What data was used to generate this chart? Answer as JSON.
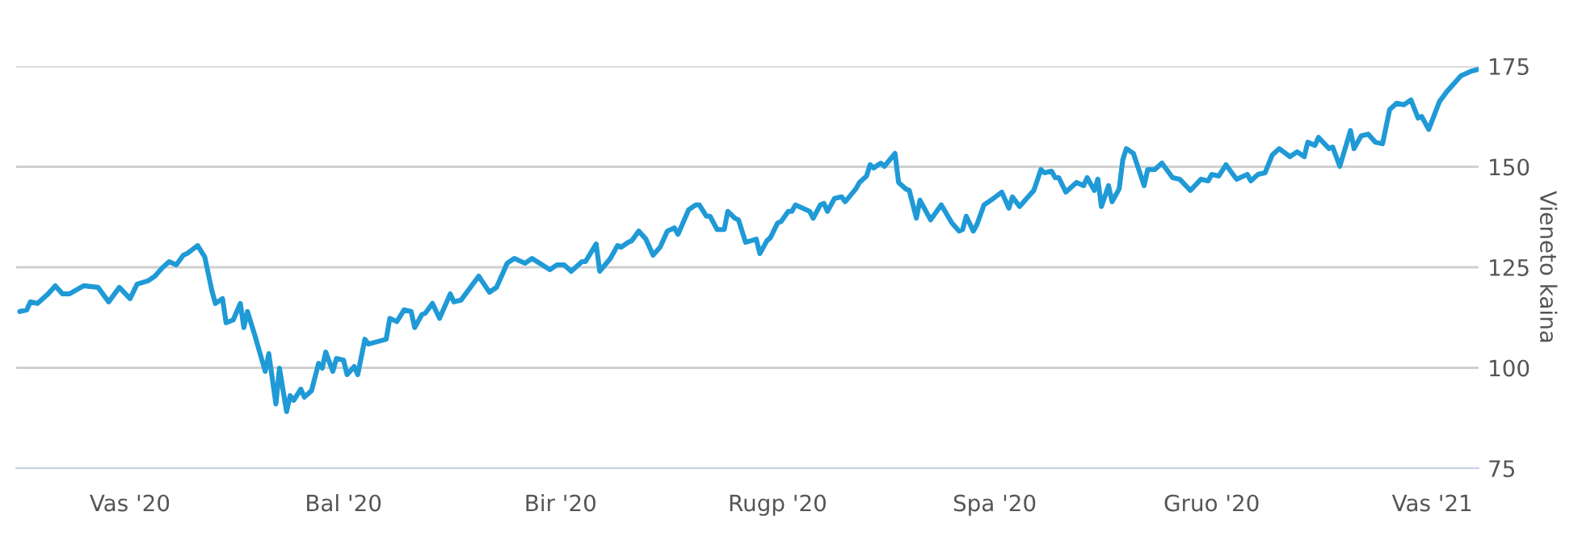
{
  "chart_data": {
    "type": "line",
    "ylabel": "Vieneto kaina",
    "xlim": [
      "2019-12-31",
      "2021-02-14"
    ],
    "xticks": [
      {
        "value": "2020-02-01",
        "label": "Vas '20"
      },
      {
        "value": "2020-04-01",
        "label": "Bal '20"
      },
      {
        "value": "2020-06-01",
        "label": "Bir '20"
      },
      {
        "value": "2020-08-01",
        "label": "Rugp '20"
      },
      {
        "value": "2020-10-01",
        "label": "Spa '20"
      },
      {
        "value": "2020-12-01",
        "label": "Gruo '20"
      },
      {
        "value": "2021-02-01",
        "label": "Vas '21"
      }
    ],
    "ylim": [
      75,
      175
    ],
    "yticks": [
      75,
      100,
      125,
      150,
      175
    ],
    "grid": "y",
    "marker": "none",
    "line_style": "solid",
    "x": [
      "2020-01-01",
      "2020-01-03",
      "2020-01-04",
      "2020-01-06",
      "2020-01-09",
      "2020-01-11",
      "2020-01-13",
      "2020-01-15",
      "2020-01-19",
      "2020-01-23",
      "2020-01-26",
      "2020-01-29",
      "2020-02-01",
      "2020-02-03",
      "2020-02-06",
      "2020-02-08",
      "2020-02-10",
      "2020-02-12",
      "2020-02-14",
      "2020-02-16",
      "2020-02-17",
      "2020-02-20",
      "2020-02-22",
      "2020-02-24",
      "2020-02-25",
      "2020-02-27",
      "2020-02-28",
      "2020-03-01",
      "2020-03-03",
      "2020-03-04",
      "2020-03-05",
      "2020-03-07",
      "2020-03-10",
      "2020-03-11",
      "2020-03-13",
      "2020-03-14",
      "2020-03-16",
      "2020-03-17",
      "2020-03-18",
      "2020-03-20",
      "2020-03-21",
      "2020-03-23",
      "2020-03-25",
      "2020-03-26",
      "2020-03-27",
      "2020-03-29",
      "2020-03-30",
      "2020-04-01",
      "2020-04-02",
      "2020-04-04",
      "2020-04-05",
      "2020-04-07",
      "2020-04-08",
      "2020-04-13",
      "2020-04-14",
      "2020-04-16",
      "2020-04-18",
      "2020-04-20",
      "2020-04-21",
      "2020-04-23",
      "2020-04-24",
      "2020-04-26",
      "2020-04-28",
      "2020-05-01",
      "2020-05-02",
      "2020-05-04",
      "2020-05-09",
      "2020-05-12",
      "2020-05-14",
      "2020-05-17",
      "2020-05-19",
      "2020-05-22",
      "2020-05-24",
      "2020-05-29",
      "2020-05-31",
      "2020-06-02",
      "2020-06-04",
      "2020-06-07",
      "2020-06-08",
      "2020-06-11",
      "2020-06-12",
      "2020-06-15",
      "2020-06-17",
      "2020-06-18",
      "2020-06-20",
      "2020-06-21",
      "2020-06-23",
      "2020-06-25",
      "2020-06-27",
      "2020-06-29",
      "2020-07-01",
      "2020-07-03",
      "2020-07-04",
      "2020-07-07",
      "2020-07-09",
      "2020-07-10",
      "2020-07-12",
      "2020-07-13",
      "2020-07-15",
      "2020-07-17",
      "2020-07-18",
      "2020-07-20",
      "2020-07-21",
      "2020-07-23",
      "2020-07-26",
      "2020-07-27",
      "2020-07-29",
      "2020-07-30",
      "2020-08-01",
      "2020-08-02",
      "2020-08-04",
      "2020-08-05",
      "2020-08-06",
      "2020-08-09",
      "2020-08-10",
      "2020-08-11",
      "2020-08-13",
      "2020-08-14",
      "2020-08-15",
      "2020-08-17",
      "2020-08-19",
      "2020-08-20",
      "2020-08-23",
      "2020-08-24",
      "2020-08-26",
      "2020-08-27",
      "2020-08-28",
      "2020-08-30",
      "2020-08-31",
      "2020-09-03",
      "2020-09-04",
      "2020-09-06",
      "2020-09-07",
      "2020-09-09",
      "2020-09-10",
      "2020-09-13",
      "2020-09-16",
      "2020-09-19",
      "2020-09-21",
      "2020-09-22",
      "2020-09-23",
      "2020-09-25",
      "2020-09-26",
      "2020-09-28",
      "2020-09-30",
      "2020-10-03",
      "2020-10-05",
      "2020-10-06",
      "2020-10-08",
      "2020-10-10",
      "2020-10-12",
      "2020-10-14",
      "2020-10-15",
      "2020-10-17",
      "2020-10-18",
      "2020-10-19",
      "2020-10-21",
      "2020-10-24",
      "2020-10-26",
      "2020-10-27",
      "2020-10-29",
      "2020-10-30",
      "2020-10-31",
      "2020-11-02",
      "2020-11-03",
      "2020-11-05",
      "2020-11-06",
      "2020-11-07",
      "2020-11-09",
      "2020-11-12",
      "2020-11-13",
      "2020-11-15",
      "2020-11-17",
      "2020-11-20",
      "2020-11-22",
      "2020-11-25",
      "2020-11-28",
      "2020-11-30",
      "2020-12-01",
      "2020-12-03",
      "2020-12-05",
      "2020-12-08",
      "2020-12-11",
      "2020-12-12",
      "2020-12-14",
      "2020-12-16",
      "2020-12-18",
      "2020-12-20",
      "2020-12-23",
      "2020-12-25",
      "2020-12-27",
      "2020-12-28",
      "2020-12-30",
      "2020-12-31",
      "2021-01-03",
      "2021-01-04",
      "2021-01-06",
      "2021-01-09",
      "2021-01-10",
      "2021-01-12",
      "2021-01-14",
      "2021-01-16",
      "2021-01-18",
      "2021-01-20",
      "2021-01-22",
      "2021-01-24",
      "2021-01-26",
      "2021-01-28",
      "2021-01-29",
      "2021-01-31",
      "2021-02-03",
      "2021-02-05",
      "2021-02-09",
      "2021-02-12",
      "2021-02-14"
    ],
    "series": [
      {
        "color": "#1f9ad6",
        "values": [
          114,
          114.4,
          116.4,
          116,
          118.4,
          120.4,
          118.4,
          118.4,
          120.4,
          120,
          116.4,
          120,
          117.2,
          120.8,
          121.6,
          122.8,
          124.8,
          126.4,
          125.6,
          128,
          128.4,
          130.4,
          127.6,
          119.2,
          116,
          117.2,
          111.2,
          111.9,
          116,
          110,
          114,
          108.3,
          99.1,
          103.5,
          91,
          99.9,
          89.1,
          93.1,
          91.9,
          94.7,
          92.7,
          94.3,
          101.1,
          99.9,
          103.9,
          99.1,
          102.3,
          101.9,
          98.3,
          100.3,
          98.3,
          107.1,
          105.9,
          107.1,
          112.3,
          111.5,
          114.4,
          114,
          110,
          113.2,
          113.6,
          116,
          112.3,
          118.4,
          116.4,
          116.8,
          122.8,
          118.8,
          120,
          126,
          127.2,
          126,
          127.2,
          124.4,
          125.6,
          125.6,
          124,
          126.4,
          126.4,
          130.8,
          124,
          127.2,
          130.4,
          130,
          131.2,
          131.6,
          134,
          132,
          128,
          130,
          134,
          134.8,
          133.2,
          139.3,
          140.5,
          140.5,
          137.7,
          137.7,
          134.4,
          134.4,
          138.9,
          137.2,
          136.8,
          131.2,
          132,
          128.4,
          131.6,
          132.4,
          136,
          136.4,
          138.9,
          138.9,
          140.5,
          139.3,
          138.9,
          137.2,
          140.5,
          140.9,
          138.9,
          142.1,
          142.5,
          141.3,
          144.5,
          146.1,
          147.7,
          150.5,
          149.7,
          150.9,
          150.1,
          153.3,
          146.1,
          144.5,
          144.1,
          137.2,
          141.7,
          136.8,
          140.5,
          136,
          134,
          134.4,
          137.7,
          134,
          135.6,
          140.5,
          141.7,
          143.7,
          139.7,
          142.5,
          140.1,
          142.1,
          144.1,
          149.3,
          148.5,
          148.9,
          147.3,
          147.3,
          143.7,
          146.1,
          145.3,
          147.3,
          144.1,
          146.9,
          140.1,
          145.3,
          141.3,
          144.5,
          151.7,
          154.5,
          153.3,
          145.3,
          149.3,
          149.3,
          150.9,
          147.3,
          146.9,
          144.1,
          146.9,
          146.5,
          148.1,
          147.7,
          150.5,
          146.9,
          148.1,
          146.5,
          148.1,
          148.5,
          152.9,
          154.5,
          152.5,
          153.7,
          152.5,
          156.1,
          155.3,
          157.3,
          154.5,
          154.9,
          150.1,
          159,
          154.5,
          157.7,
          158.1,
          156.1,
          155.7,
          164.2,
          165.8,
          165.4,
          166.6,
          162.1,
          162.5,
          159.3,
          166.2,
          168.6,
          172.6,
          173.8,
          174.2
        ]
      }
    ]
  }
}
